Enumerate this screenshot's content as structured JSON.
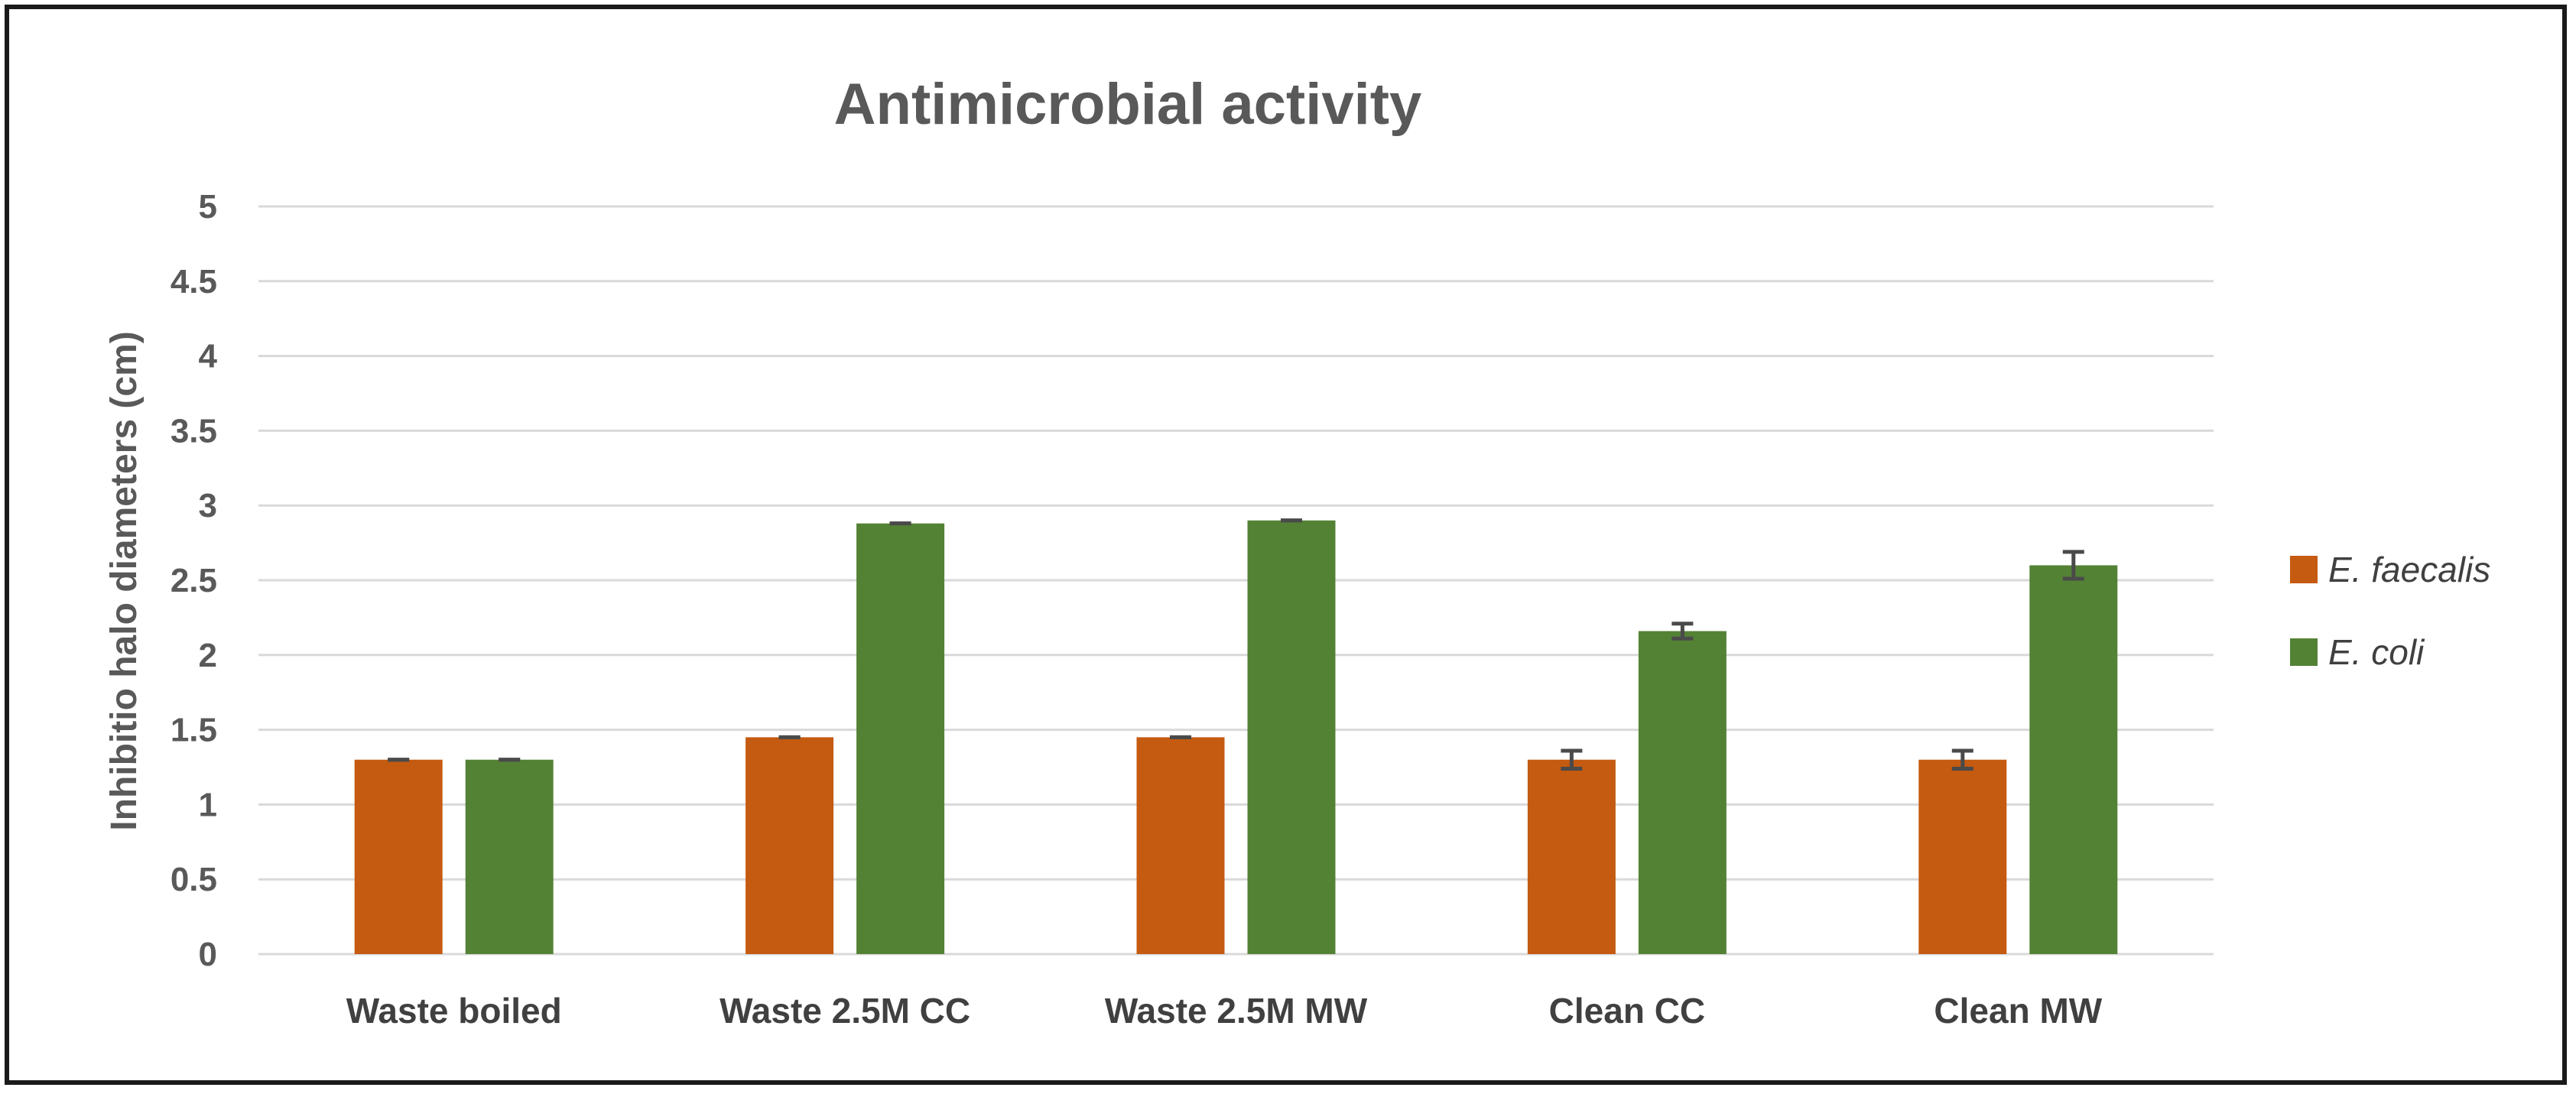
{
  "chart_data": {
    "type": "bar",
    "title": "Antimicrobial activity",
    "xlabel": "",
    "ylabel": "Inhibitio halo diameters (cm)",
    "ylim": [
      0,
      5
    ],
    "yticks": [
      "0",
      "0.5",
      "1",
      "1.5",
      "2",
      "2.5",
      "3",
      "3.5",
      "4",
      "4.5",
      "5"
    ],
    "grid": true,
    "legend_position": "right",
    "categories": [
      "Waste boiled",
      "Waste 2.5M CC",
      "Waste 2.5M MW",
      "Clean CC",
      "Clean MW"
    ],
    "series": [
      {
        "name": "E. faecalis",
        "color": "#c55a11",
        "values": [
          1.3,
          1.45,
          1.45,
          1.3,
          1.3
        ],
        "errors": [
          0.0,
          0.0,
          0.0,
          0.06,
          0.06
        ]
      },
      {
        "name": "E. coli",
        "color": "#548235",
        "values": [
          1.3,
          2.88,
          2.9,
          2.16,
          2.6
        ],
        "errors": [
          0.0,
          0.0,
          0.0,
          0.05,
          0.09
        ]
      }
    ]
  }
}
